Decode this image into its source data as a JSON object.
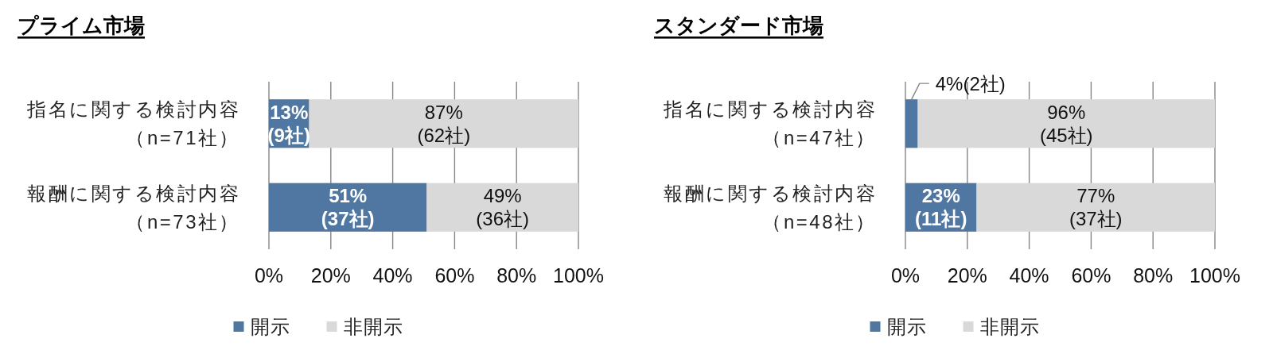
{
  "chart_data": [
    {
      "type": "bar",
      "orientation": "horizontal",
      "stacked": true,
      "title": "プライム市場",
      "categories": [
        "指名に関する検討内容（n=71社）",
        "報酬に関する検討内容（n=73社）"
      ],
      "series": [
        {
          "name": "開示",
          "color": "#4f77a1",
          "values": [
            13,
            51
          ],
          "value_labels": [
            "13%\n(9社)",
            "51%\n(37社)"
          ]
        },
        {
          "name": "非開示",
          "color": "#d9d9d9",
          "values": [
            87,
            49
          ],
          "value_labels": [
            "87%\n(62社)",
            "49%\n(36社)"
          ]
        }
      ],
      "xlim": [
        0,
        100
      ],
      "xticks": [
        {
          "value": 0,
          "label": "0%"
        },
        {
          "value": 20,
          "label": "20%"
        },
        {
          "value": 40,
          "label": "40%"
        },
        {
          "value": 60,
          "label": "60%"
        },
        {
          "value": 80,
          "label": "80%"
        },
        {
          "value": 100,
          "label": "100%"
        }
      ],
      "grid": "x",
      "legend": "bottom"
    },
    {
      "type": "bar",
      "orientation": "horizontal",
      "stacked": true,
      "title": "スタンダード市場",
      "categories": [
        "指名に関する検討内容（n=47社）",
        "報酬に関する検討内容（n=48社）"
      ],
      "series": [
        {
          "name": "開示",
          "color": "#4f77a1",
          "values": [
            4,
            23
          ],
          "value_labels": [
            "4%(2社)",
            "23%\n(11社)"
          ]
        },
        {
          "name": "非開示",
          "color": "#d9d9d9",
          "values": [
            96,
            77
          ],
          "value_labels": [
            "96%\n(45社)",
            "77%\n(37社)"
          ]
        }
      ],
      "xlim": [
        0,
        100
      ],
      "xticks": [
        {
          "value": 0,
          "label": "0%"
        },
        {
          "value": 20,
          "label": "20%"
        },
        {
          "value": 40,
          "label": "40%"
        },
        {
          "value": 60,
          "label": "60%"
        },
        {
          "value": 80,
          "label": "80%"
        },
        {
          "value": 100,
          "label": "100%"
        }
      ],
      "grid": "x",
      "legend": "bottom"
    }
  ]
}
